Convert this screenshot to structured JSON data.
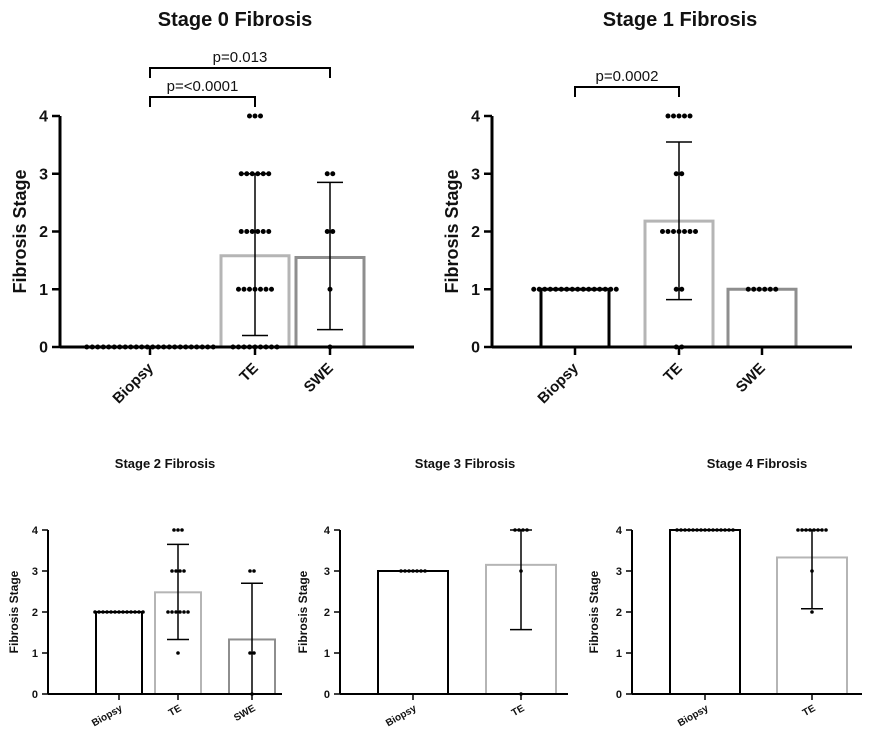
{
  "chart_data": [
    {
      "type": "bar",
      "title": "Stage 0 Fibrosis",
      "ylabel": "Fibrosis Stage",
      "categories": [
        "Biopsy",
        "TE",
        "SWE"
      ],
      "ylim": [
        0,
        4
      ],
      "yticks": [
        "0",
        "1",
        "2",
        "3",
        "4"
      ],
      "bar_colors": [
        "#000000",
        "#b5b5b5",
        "#8e8e8e"
      ],
      "values": [
        0,
        1.58,
        1.55
      ],
      "error_low": [
        0,
        0.2,
        0.3
      ],
      "error_high": [
        0,
        3.0,
        2.85
      ],
      "points": [
        [
          0,
          0,
          0,
          0,
          0,
          0,
          0,
          0,
          0,
          0,
          0,
          0,
          0,
          0,
          0,
          0,
          0,
          0,
          0,
          0,
          0,
          0,
          0,
          0
        ],
        [
          0,
          0,
          0,
          0,
          0,
          0,
          0,
          0,
          0,
          1,
          1,
          1,
          1,
          1,
          1,
          1,
          2,
          2,
          2,
          2,
          2,
          2,
          3,
          3,
          3,
          3,
          3,
          3,
          4,
          4,
          4
        ],
        [
          0,
          1,
          2,
          2,
          3,
          3
        ]
      ],
      "comparisons": [
        {
          "from": 0,
          "to": 1,
          "label": "p=<0.0001"
        },
        {
          "from": 0,
          "to": 2,
          "label": "p=0.013"
        }
      ]
    },
    {
      "type": "bar",
      "title": "Stage 1 Fibrosis",
      "ylabel": "Fibrosis Stage",
      "categories": [
        "Biopsy",
        "TE",
        "SWE"
      ],
      "ylim": [
        0,
        4
      ],
      "yticks": [
        "0",
        "1",
        "2",
        "3",
        "4"
      ],
      "bar_colors": [
        "#000000",
        "#b5b5b5",
        "#8e8e8e"
      ],
      "values": [
        1,
        2.18,
        1
      ],
      "error_low": [
        1,
        0.82,
        1
      ],
      "error_high": [
        1,
        3.55,
        1
      ],
      "points": [
        [
          1,
          1,
          1,
          1,
          1,
          1,
          1,
          1,
          1,
          1,
          1,
          1,
          1,
          1,
          1,
          1
        ],
        [
          0,
          0,
          1,
          1,
          2,
          2,
          2,
          2,
          2,
          2,
          2,
          3,
          3,
          4,
          4,
          4,
          4,
          4
        ],
        [
          1,
          1,
          1,
          1,
          1,
          1
        ]
      ],
      "comparisons": [
        {
          "from": 0,
          "to": 1,
          "label": "p=0.0002"
        }
      ]
    },
    {
      "type": "bar",
      "title": "Stage 2 Fibrosis",
      "ylabel": "Fibrosis Stage",
      "categories": [
        "Biopsy",
        "TE",
        "SWE"
      ],
      "ylim": [
        0,
        4
      ],
      "yticks": [
        "0",
        "1",
        "2",
        "3",
        "4"
      ],
      "bar_colors": [
        "#000000",
        "#b5b5b5",
        "#8e8e8e"
      ],
      "values": [
        2,
        2.48,
        1.33
      ],
      "error_low": [
        2,
        1.33,
        0
      ],
      "error_high": [
        2,
        3.65,
        2.7
      ],
      "points": [
        [
          2,
          2,
          2,
          2,
          2,
          2,
          2,
          2,
          2,
          2,
          2,
          2,
          2
        ],
        [
          1,
          2,
          2,
          2,
          2,
          2,
          2,
          3,
          3,
          3,
          3,
          4,
          4,
          4
        ],
        [
          0,
          1,
          1,
          3,
          3
        ]
      ],
      "comparisons": []
    },
    {
      "type": "bar",
      "title": "Stage 3 Fibrosis",
      "ylabel": "Fibrosis Stage",
      "categories": [
        "Biopsy",
        "TE"
      ],
      "ylim": [
        0,
        4
      ],
      "yticks": [
        "0",
        "1",
        "2",
        "3",
        "4"
      ],
      "bar_colors": [
        "#000000",
        "#b5b5b5"
      ],
      "values": [
        3,
        3.15
      ],
      "error_low": [
        3,
        1.57
      ],
      "error_high": [
        3,
        4.0
      ],
      "points": [
        [
          3,
          3,
          3,
          3,
          3,
          3,
          3
        ],
        [
          0,
          3,
          4,
          4,
          4,
          4
        ]
      ],
      "comparisons": []
    },
    {
      "type": "bar",
      "title": "Stage 4 Fibrosis",
      "ylabel": "Fibrosis Stage",
      "categories": [
        "Biopsy",
        "TE"
      ],
      "ylim": [
        0,
        4
      ],
      "yticks": [
        "0",
        "1",
        "2",
        "3",
        "4"
      ],
      "bar_colors": [
        "#000000",
        "#b5b5b5"
      ],
      "values": [
        4,
        3.33
      ],
      "error_low": [
        4,
        2.08
      ],
      "error_high": [
        4,
        4.0
      ],
      "points": [
        [
          4,
          4,
          4,
          4,
          4,
          4,
          4,
          4,
          4,
          4,
          4,
          4,
          4,
          4,
          4
        ],
        [
          2,
          3,
          4,
          4,
          4,
          4,
          4,
          4,
          4,
          4
        ]
      ],
      "comparisons": []
    }
  ]
}
